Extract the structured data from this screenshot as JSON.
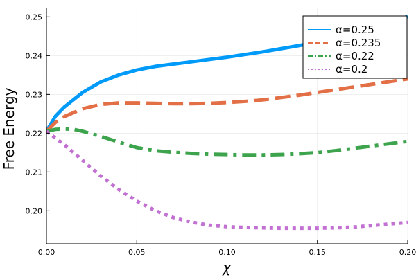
{
  "chart_data": {
    "type": "line",
    "title": "",
    "xlabel": "χ",
    "ylabel": "Free Energy",
    "xlim": [
      0,
      0.2
    ],
    "ylim": [
      0.1915,
      0.2522
    ],
    "xticks": [
      0.0,
      0.05,
      0.1,
      0.15,
      0.2
    ],
    "xtick_labels": [
      "0.00",
      "0.05",
      "0.10",
      "0.15",
      "0.20"
    ],
    "yticks": [
      0.2,
      0.21,
      0.22,
      0.23,
      0.24,
      0.25
    ],
    "ytick_labels": [
      "0.20",
      "0.21",
      "0.22",
      "0.23",
      "0.24",
      "0.25"
    ],
    "grid": true,
    "legend_position": "top-right",
    "series": [
      {
        "name": "α=0.25",
        "color": "#009af9",
        "dash": "solid",
        "x": [
          0,
          0.005,
          0.01,
          0.02,
          0.03,
          0.04,
          0.05,
          0.06,
          0.07,
          0.08,
          0.09,
          0.1,
          0.11,
          0.12,
          0.13,
          0.14,
          0.15,
          0.16,
          0.17,
          0.18,
          0.19,
          0.2
        ],
        "y": [
          0.2205,
          0.2244,
          0.2268,
          0.2305,
          0.2332,
          0.235,
          0.2363,
          0.2372,
          0.2378,
          0.2384,
          0.239,
          0.2396,
          0.2403,
          0.241,
          0.2418,
          0.2426,
          0.2435,
          0.2446,
          0.2458,
          0.2471,
          0.2486,
          0.2501
        ]
      },
      {
        "name": "α=0.235",
        "color": "#e26f46",
        "dash": "dash",
        "x": [
          0,
          0.005,
          0.01,
          0.02,
          0.03,
          0.04,
          0.05,
          0.06,
          0.07,
          0.08,
          0.09,
          0.1,
          0.11,
          0.12,
          0.13,
          0.14,
          0.15,
          0.16,
          0.17,
          0.18,
          0.19,
          0.2
        ],
        "y": [
          0.2205,
          0.2228,
          0.2243,
          0.2263,
          0.2274,
          0.2278,
          0.2278,
          0.2277,
          0.2276,
          0.2276,
          0.2277,
          0.2279,
          0.2282,
          0.2286,
          0.2292,
          0.2298,
          0.2305,
          0.2312,
          0.2319,
          0.2326,
          0.2333,
          0.234
        ]
      },
      {
        "name": "α=0.22",
        "color": "#3da44d",
        "dash": "dashdot",
        "x": [
          0,
          0.005,
          0.01,
          0.015,
          0.02,
          0.03,
          0.04,
          0.05,
          0.06,
          0.07,
          0.08,
          0.09,
          0.1,
          0.11,
          0.12,
          0.13,
          0.14,
          0.15,
          0.16,
          0.17,
          0.18,
          0.19,
          0.2
        ],
        "y": [
          0.2205,
          0.221,
          0.2211,
          0.221,
          0.2205,
          0.2192,
          0.2177,
          0.2163,
          0.2155,
          0.2151,
          0.2148,
          0.2146,
          0.2145,
          0.2144,
          0.2144,
          0.2145,
          0.2147,
          0.215,
          0.2155,
          0.2161,
          0.2167,
          0.2173,
          0.2179
        ]
      },
      {
        "name": "α=0.2",
        "color": "#c271d2",
        "dash": "dot",
        "x": [
          0,
          0.01,
          0.02,
          0.03,
          0.04,
          0.05,
          0.06,
          0.07,
          0.08,
          0.09,
          0.1,
          0.11,
          0.12,
          0.13,
          0.14,
          0.15,
          0.16,
          0.17,
          0.18,
          0.19,
          0.2
        ],
        "y": [
          0.2205,
          0.217,
          0.213,
          0.209,
          0.2055,
          0.2025,
          0.2001,
          0.1983,
          0.1971,
          0.1963,
          0.1959,
          0.1957,
          0.1956,
          0.1955,
          0.1955,
          0.1955,
          0.1956,
          0.1958,
          0.1962,
          0.1966,
          0.197
        ]
      }
    ]
  }
}
